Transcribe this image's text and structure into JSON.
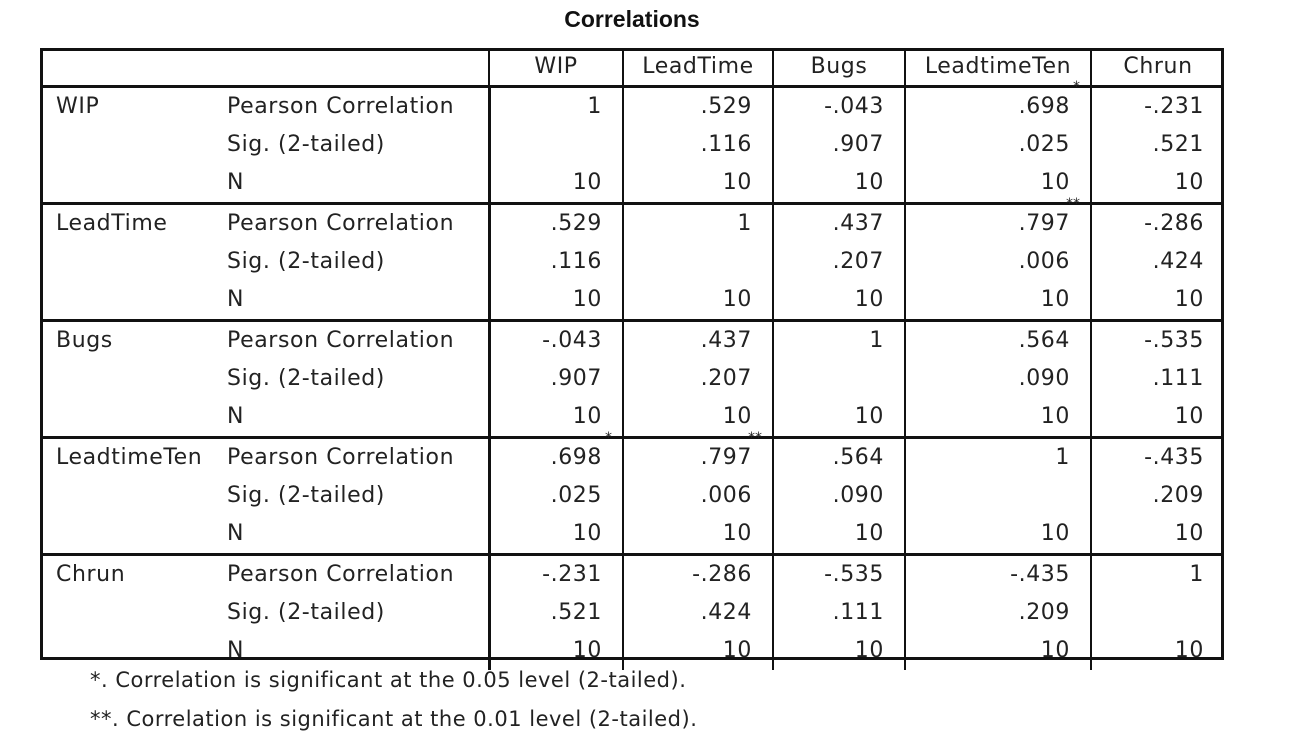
{
  "title": "Correlations",
  "columns": [
    "WIP",
    "LeadTime",
    "Bugs",
    "LeadtimeTen",
    "Chrun"
  ],
  "stat_labels": [
    "Pearson Correlation",
    "Sig. (2-tailed)",
    "N"
  ],
  "groups": [
    {
      "name": "WIP",
      "rows": [
        [
          {
            "v": "1"
          },
          {
            "v": ".529"
          },
          {
            "v": "-.043"
          },
          {
            "v": ".698",
            "s": "*"
          },
          {
            "v": "-.231"
          }
        ],
        [
          {
            "v": ""
          },
          {
            "v": ".116"
          },
          {
            "v": ".907"
          },
          {
            "v": ".025"
          },
          {
            "v": ".521"
          }
        ],
        [
          {
            "v": "10"
          },
          {
            "v": "10"
          },
          {
            "v": "10"
          },
          {
            "v": "10"
          },
          {
            "v": "10"
          }
        ]
      ]
    },
    {
      "name": "LeadTime",
      "rows": [
        [
          {
            "v": ".529"
          },
          {
            "v": "1"
          },
          {
            "v": ".437"
          },
          {
            "v": ".797",
            "s": "**"
          },
          {
            "v": "-.286"
          }
        ],
        [
          {
            "v": ".116"
          },
          {
            "v": ""
          },
          {
            "v": ".207"
          },
          {
            "v": ".006"
          },
          {
            "v": ".424"
          }
        ],
        [
          {
            "v": "10"
          },
          {
            "v": "10"
          },
          {
            "v": "10"
          },
          {
            "v": "10"
          },
          {
            "v": "10"
          }
        ]
      ]
    },
    {
      "name": "Bugs",
      "rows": [
        [
          {
            "v": "-.043"
          },
          {
            "v": ".437"
          },
          {
            "v": "1"
          },
          {
            "v": ".564"
          },
          {
            "v": "-.535"
          }
        ],
        [
          {
            "v": ".907"
          },
          {
            "v": ".207"
          },
          {
            "v": ""
          },
          {
            "v": ".090"
          },
          {
            "v": ".111"
          }
        ],
        [
          {
            "v": "10"
          },
          {
            "v": "10"
          },
          {
            "v": "10"
          },
          {
            "v": "10"
          },
          {
            "v": "10"
          }
        ]
      ]
    },
    {
      "name": "LeadtimeTen",
      "rows": [
        [
          {
            "v": ".698",
            "s": "*"
          },
          {
            "v": ".797",
            "s": "**"
          },
          {
            "v": ".564"
          },
          {
            "v": "1"
          },
          {
            "v": "-.435"
          }
        ],
        [
          {
            "v": ".025"
          },
          {
            "v": ".006"
          },
          {
            "v": ".090"
          },
          {
            "v": ""
          },
          {
            "v": ".209"
          }
        ],
        [
          {
            "v": "10"
          },
          {
            "v": "10"
          },
          {
            "v": "10"
          },
          {
            "v": "10"
          },
          {
            "v": "10"
          }
        ]
      ]
    },
    {
      "name": "Chrun",
      "rows": [
        [
          {
            "v": "-.231"
          },
          {
            "v": "-.286"
          },
          {
            "v": "-.535"
          },
          {
            "v": "-.435"
          },
          {
            "v": "1"
          }
        ],
        [
          {
            "v": ".521"
          },
          {
            "v": ".424"
          },
          {
            "v": ".111"
          },
          {
            "v": ".209"
          },
          {
            "v": ""
          }
        ],
        [
          {
            "v": "10"
          },
          {
            "v": "10"
          },
          {
            "v": "10"
          },
          {
            "v": "10"
          },
          {
            "v": "10"
          }
        ]
      ]
    }
  ],
  "footnotes": [
    "*. Correlation is significant at the 0.05 level (2-tailed).",
    "**. Correlation is significant at the 0.01 level (2-tailed)."
  ]
}
